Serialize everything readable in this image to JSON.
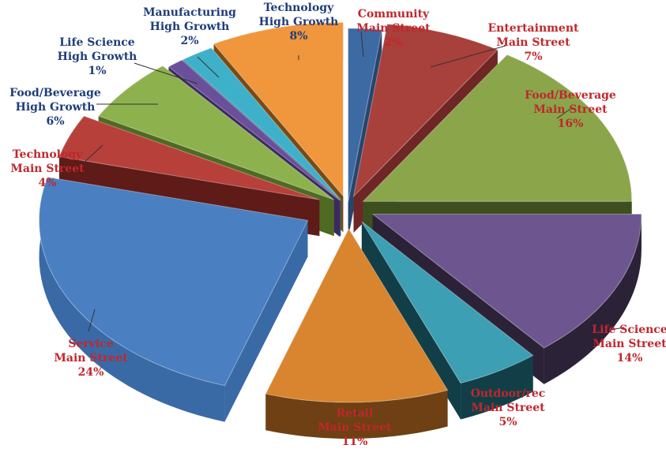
{
  "chart_data": {
    "type": "pie",
    "title": "",
    "style": "3d-exploded",
    "slices": [
      {
        "name": "Community",
        "group": "Main Street",
        "value": 2,
        "pct_label": "2%",
        "color": "#3d6aa3",
        "dark": "#27466e",
        "label_color": "#c0272d"
      },
      {
        "name": "Entertainment",
        "group": "Main Street",
        "value": 7,
        "pct_label": "7%",
        "color": "#a8403b",
        "dark": "#6e2725",
        "label_color": "#c0272d"
      },
      {
        "name": "Food/Beverage",
        "group": "Main Street",
        "value": 16,
        "pct_label": "16%",
        "color": "#8aa54a",
        "dark": "#3e4f1f",
        "label_color": "#c0272d"
      },
      {
        "name": "Life Science",
        "group": "Main Street",
        "value": 14,
        "pct_label": "14%",
        "color": "#6d5690",
        "dark": "#2c2238",
        "label_color": "#c0272d"
      },
      {
        "name": "Outdoor/rec",
        "group": "Main Street",
        "value": 5,
        "pct_label": "5%",
        "color": "#3c9fb4",
        "dark": "#123f47",
        "label_color": "#c0272d"
      },
      {
        "name": "Retail",
        "group": "Main Street",
        "value": 11,
        "pct_label": "11%",
        "color": "#d9842e",
        "dark": "#6e4013",
        "label_color": "#c0272d"
      },
      {
        "name": "Service",
        "group": "Main Street",
        "value": 24,
        "pct_label": "24%",
        "color": "#4a7fc1",
        "dark": "#3a6aa6",
        "label_color": "#c0272d"
      },
      {
        "name": "Technology",
        "group": "Main Street",
        "value": 4,
        "pct_label": "4%",
        "color": "#b8403a",
        "dark": "#5e1b18",
        "label_color": "#c0272d"
      },
      {
        "name": "Food/Beverage",
        "group": "High Growth",
        "value": 6,
        "pct_label": "6%",
        "color": "#8db24d",
        "dark": "#4f6a23",
        "label_color": "#1f3d7a"
      },
      {
        "name": "Life Science",
        "group": "High Growth",
        "value": 1,
        "pct_label": "1%",
        "color": "#6a4f9a",
        "dark": "#3c2a5e",
        "label_color": "#1f3d7a"
      },
      {
        "name": "Manufacturing",
        "group": "High Growth",
        "value": 2,
        "pct_label": "2%",
        "color": "#3fb0c9",
        "dark": "#1d6a7a",
        "label_color": "#1f3d7a"
      },
      {
        "name": "Technology",
        "group": "High Growth",
        "value": 8,
        "pct_label": "8%",
        "color": "#f0963c",
        "dark": "#7a4a15",
        "label_color": "#1f3d7a"
      }
    ],
    "legend": "none"
  }
}
